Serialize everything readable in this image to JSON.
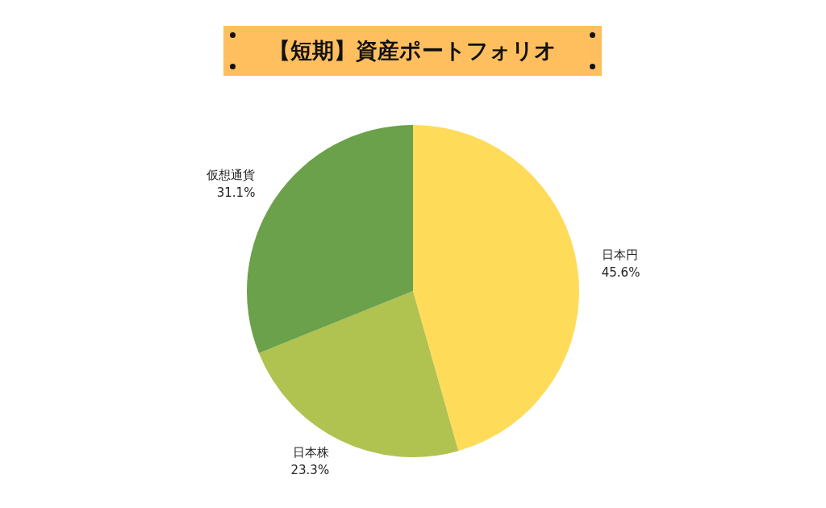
{
  "chart_data": {
    "type": "pie",
    "title": "【短期】資産ポートフォリオ",
    "categories": [
      "日本円",
      "日本株",
      "仮想通貨"
    ],
    "values": [
      45.6,
      23.3,
      31.1
    ],
    "colors": [
      "#fedc5a",
      "#b0c24f",
      "#6ba14a"
    ],
    "value_labels": [
      "45.6%",
      "23.3%",
      "31.1%"
    ],
    "legend": false
  }
}
